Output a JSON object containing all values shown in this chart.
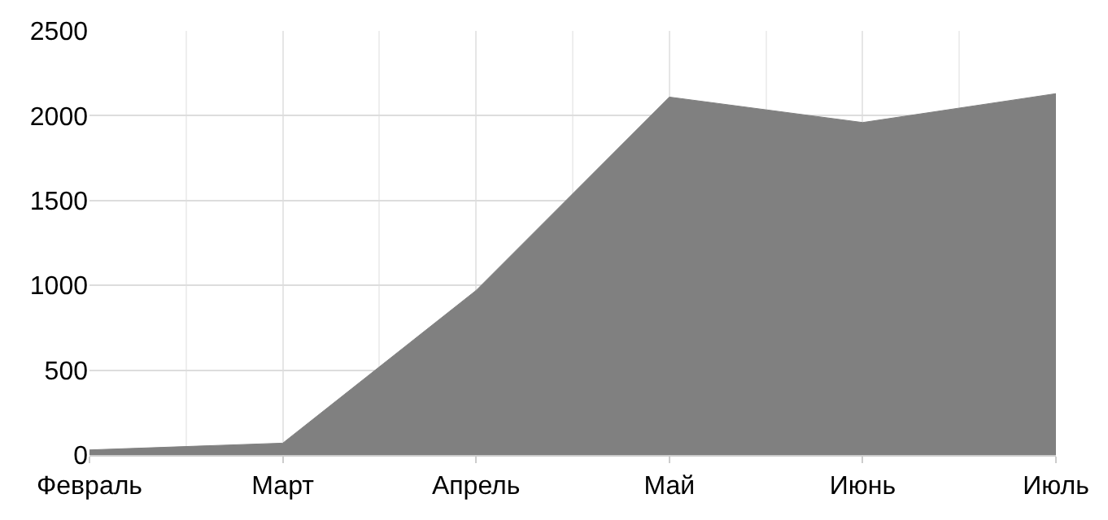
{
  "chart_data": {
    "type": "area",
    "categories": [
      "Февраль",
      "Март",
      "Апрель",
      "Май",
      "Июнь",
      "Июль"
    ],
    "series": [
      {
        "color": "#808080",
        "values": [
          30,
          70,
          970,
          2110,
          1960,
          2130
        ]
      }
    ],
    "ylim": [
      0,
      2500
    ],
    "yticks": [
      0,
      500,
      1000,
      1500,
      2000,
      2500
    ],
    "grid": true
  }
}
